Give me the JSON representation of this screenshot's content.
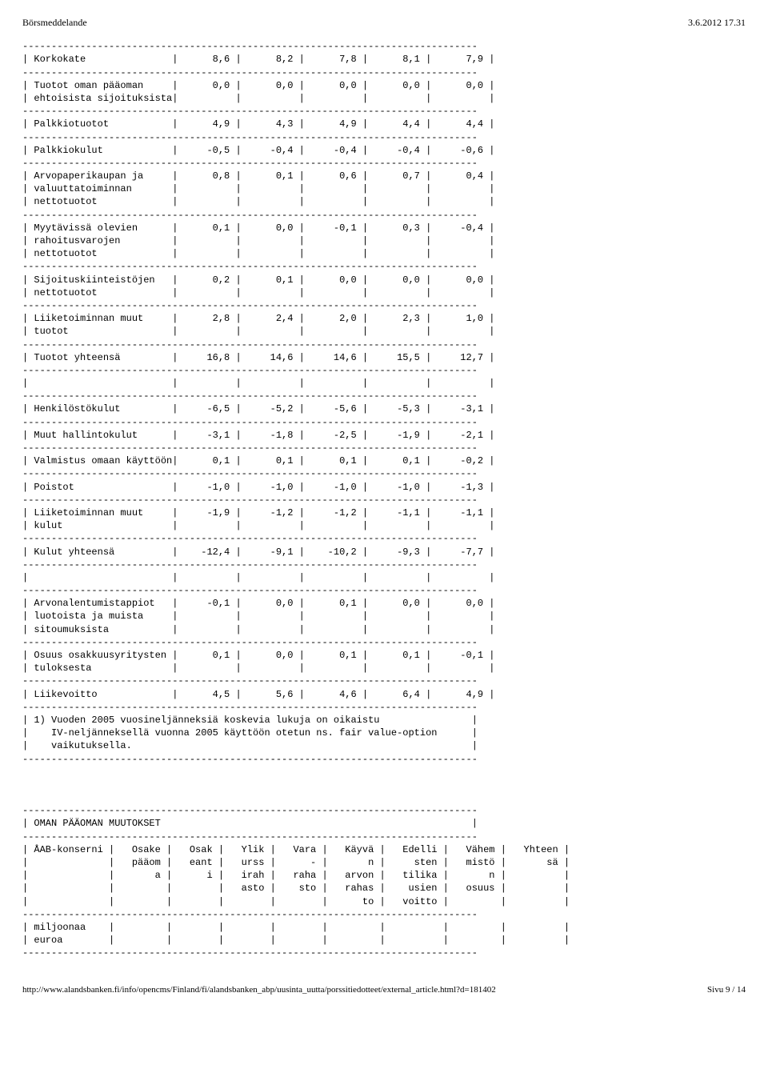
{
  "topbar": {
    "left": "Börsmeddelande",
    "right": "3.6.2012 17.31"
  },
  "hr": "-------------------------------------------------------------------------------",
  "t1": {
    "rows": [
      {
        "label": "Korkokate",
        "c": [
          "8,6",
          "8,2",
          "7,8",
          "8,1",
          "7,9"
        ]
      },
      {
        "label": "Tuotot oman pääoman",
        "c": [
          "0,0",
          "0,0",
          "0,0",
          "0,0",
          "0,0"
        ],
        "cont": [
          "ehtoisista sijoituksista"
        ]
      },
      {
        "label": "Palkkiotuotot",
        "c": [
          "4,9",
          "4,3",
          "4,9",
          "4,4",
          "4,4"
        ]
      },
      {
        "label": "Palkkiokulut",
        "c": [
          "-0,5",
          "-0,4",
          "-0,4",
          "-0,4",
          "-0,6"
        ]
      },
      {
        "label": "Arvopaperikaupan ja",
        "c": [
          "0,8",
          "0,1",
          "0,6",
          "0,7",
          "0,4"
        ],
        "cont": [
          "valuuttatoiminnan",
          "nettotuotot"
        ]
      },
      {
        "label": "Myytävissä olevien",
        "c": [
          "0,1",
          "0,0",
          "-0,1",
          "0,3",
          "-0,4"
        ],
        "cont": [
          "rahoitusvarojen",
          "nettotuotot"
        ]
      },
      {
        "label": "Sijoituskiinteistöjen",
        "c": [
          "0,2",
          "0,1",
          "0,0",
          "0,0",
          "0,0"
        ],
        "cont": [
          "nettotuotot"
        ]
      },
      {
        "label": "Liiketoiminnan muut",
        "c": [
          "2,8",
          "2,4",
          "2,0",
          "2,3",
          "1,0"
        ],
        "cont": [
          "tuotot"
        ]
      },
      {
        "label": "Tuotot yhteensä",
        "c": [
          "16,8",
          "14,6",
          "14,6",
          "15,5",
          "12,7"
        ]
      },
      {
        "blank": true
      },
      {
        "label": "Henkilöstökulut",
        "c": [
          "-6,5",
          "-5,2",
          "-5,6",
          "-5,3",
          "-3,1"
        ]
      },
      {
        "label": "Muut hallintokulut",
        "c": [
          "-3,1",
          "-1,8",
          "-2,5",
          "-1,9",
          "-2,1"
        ]
      },
      {
        "label": "Valmistus omaan käyttöön",
        "c": [
          "0,1",
          "0,1",
          "0,1",
          "0,1",
          "-0,2"
        ]
      },
      {
        "label": "Poistot",
        "c": [
          "-1,0",
          "-1,0",
          "-1,0",
          "-1,0",
          "-1,3"
        ]
      },
      {
        "label": "Liiketoiminnan muut",
        "c": [
          "-1,9",
          "-1,2",
          "-1,2",
          "-1,1",
          "-1,1"
        ],
        "cont": [
          "kulut"
        ]
      },
      {
        "label": "Kulut yhteensä",
        "c": [
          "-12,4",
          "-9,1",
          "-10,2",
          "-9,3",
          "-7,7"
        ]
      },
      {
        "blank": true
      },
      {
        "label": "Arvonalentumistappiot",
        "c": [
          "-0,1",
          "0,0",
          "0,1",
          "0,0",
          "0,0"
        ],
        "cont": [
          "luotoista ja muista",
          "sitoumuksista"
        ]
      },
      {
        "label": "Osuus osakkuusyritysten",
        "c": [
          "0,1",
          "0,0",
          "0,1",
          "0,1",
          "-0,1"
        ],
        "cont": [
          "tuloksesta"
        ]
      },
      {
        "label": "Liikevoitto",
        "c": [
          "4,5",
          "5,6",
          "4,6",
          "6,4",
          "4,9"
        ]
      }
    ],
    "note": [
      "1) Vuoden 2005 vuosineljänneksiä koskevia lukuja on oikaistu",
      "   IV-neljänneksellä vuonna 2005 käyttöön otetun ns. fair value-option",
      "   vaikutuksella."
    ]
  },
  "t2": {
    "title": "OMAN PÄÄOMAN MUUTOKSET",
    "header": [
      [
        "ÅAB-konserni",
        "Osake",
        "Osak",
        "Ylik",
        "Vara",
        "Käyvä",
        "Edelli",
        "Vähem",
        "Yhteen"
      ],
      [
        "",
        "pääom",
        "eant",
        "urss",
        "-",
        "n",
        "sten",
        "mistö",
        "sä"
      ],
      [
        "",
        "a",
        "i",
        "irah",
        "raha",
        "arvon",
        "tilika",
        "n",
        ""
      ],
      [
        "",
        "",
        "",
        "asto",
        "sto",
        "rahas",
        "usien",
        "osuus",
        ""
      ],
      [
        "",
        "",
        "",
        "",
        "",
        "to",
        "voitto",
        "",
        ""
      ]
    ],
    "row2label": "miljoonaa",
    "row2cont": "euroa"
  },
  "footer": {
    "url": "http://www.alandsbanken.fi/info/opencms/Finland/fi/alandsbanken_abp/uusinta_uutta/porssitiedotteet/external_article.html?d=181402",
    "page": "Sivu 9 / 14"
  },
  "layout": {
    "t1_label_w": 25,
    "t1_col_w": [
      8,
      8,
      8,
      8,
      8
    ],
    "t2_widths": [
      14,
      7,
      6,
      6,
      6,
      7,
      8,
      7,
      8
    ]
  }
}
